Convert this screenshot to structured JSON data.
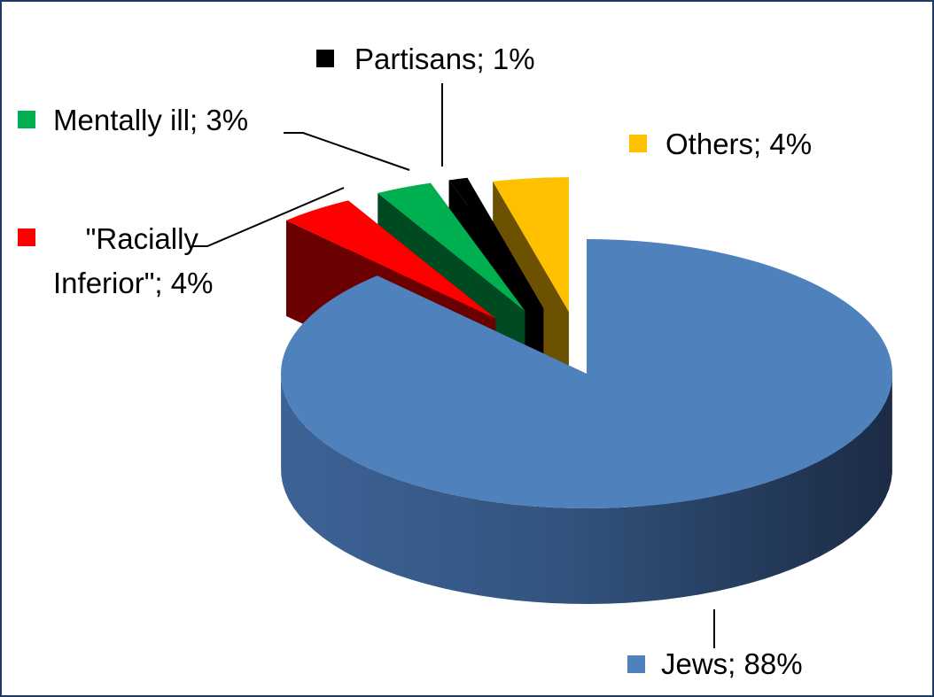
{
  "chart_data": {
    "type": "pie",
    "style": "3d-exploded",
    "slices": [
      {
        "name": "Jews",
        "value": 88,
        "label": "Jews; 88%",
        "color": "#4f81bd"
      },
      {
        "name": "\"Racially Inferior\"",
        "value": 4,
        "label_line1": "    \"Racially",
        "label_line2": "Inferior\"; 4%",
        "color": "#ff0000"
      },
      {
        "name": "Mentally ill",
        "value": 3,
        "label": "Mentally ill; 3%",
        "color": "#00b050"
      },
      {
        "name": "Partisans",
        "value": 1,
        "label": "Partisans; 1%",
        "color": "#000000"
      },
      {
        "name": "Others",
        "value": 4,
        "label": "Others; 4%",
        "color": "#ffc000"
      }
    ]
  }
}
